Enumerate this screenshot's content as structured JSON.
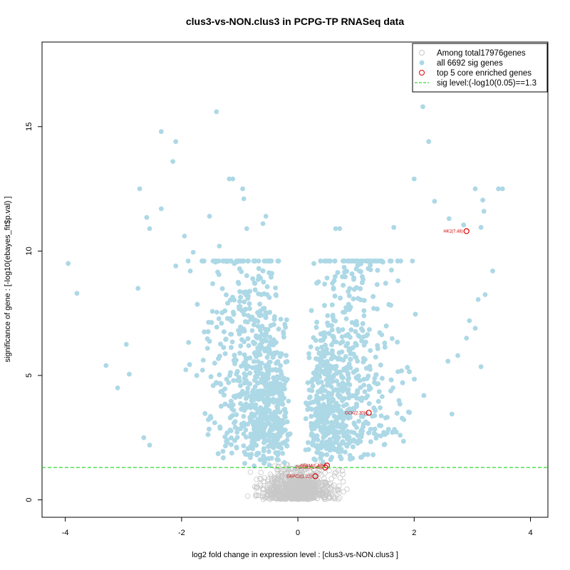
{
  "chart_data": {
    "type": "scatter",
    "title": "clus3-vs-NON.clus3 in PCPG-TP RNASeq data",
    "xlabel": "log2 fold change in expression level : [clus3-vs-NON.clus3 ]",
    "ylabel": "significance of gene : [-log10(ebayes_fit$p.val) ]",
    "xlim": [
      -4.4,
      4.3
    ],
    "ylim": [
      -0.7,
      18.4
    ],
    "xticks": [
      -4,
      -2,
      0,
      2,
      4
    ],
    "yticks": [
      0,
      5,
      10,
      15
    ],
    "sig_level": 1.3,
    "legend": {
      "placement": "top-right",
      "entries": [
        {
          "label": "Among total17976genes",
          "marker": "circle-open",
          "color": "#c8c8c8"
        },
        {
          "label": "all 6692 sig genes",
          "marker": "circle-filled",
          "color": "#add8e6"
        },
        {
          "label": "top 5 core enriched genes",
          "marker": "circle-open",
          "color": "#e00000"
        },
        {
          "label": "sig level:(-log10(0.05)==1.3",
          "marker": "dashed-line",
          "color": "#00cc00"
        }
      ]
    },
    "colors": {
      "nonsig": "#c8c8c8",
      "sig": "#add8e6",
      "core": "#e00000",
      "sigline": "#00cc00"
    },
    "highlight_points": [
      [
        -3.95,
        9.5
      ],
      [
        -3.8,
        8.3
      ],
      [
        -3.3,
        5.4
      ],
      [
        -3.1,
        4.5
      ],
      [
        -2.95,
        6.25
      ],
      [
        -2.9,
        5.05
      ],
      [
        -2.75,
        8.5
      ],
      [
        -2.72,
        12.5
      ],
      [
        -2.6,
        11.35
      ],
      [
        -2.55,
        10.9
      ],
      [
        -2.35,
        14.8
      ],
      [
        -2.35,
        11.7
      ],
      [
        -2.1,
        9.4
      ],
      [
        -2.1,
        14.4
      ],
      [
        -2.15,
        13.6
      ],
      [
        -1.95,
        10.6
      ],
      [
        -1.85,
        9.2
      ],
      [
        -1.8,
        9.95
      ],
      [
        -1.4,
        15.6
      ],
      [
        -1.52,
        11.4
      ],
      [
        -1.18,
        12.9
      ],
      [
        -1.12,
        12.9
      ],
      [
        -0.95,
        12.5
      ],
      [
        -0.93,
        12.1
      ],
      [
        -0.88,
        10.9
      ],
      [
        -0.6,
        11.1
      ],
      [
        -0.55,
        11.4
      ],
      [
        -1.35,
        10.2
      ],
      [
        -2.65,
        2.5
      ],
      [
        -2.55,
        2.2
      ],
      [
        2.15,
        15.8
      ],
      [
        2.25,
        14.4
      ],
      [
        2.0,
        12.9
      ],
      [
        2.35,
        12.0
      ],
      [
        2.6,
        11.3
      ],
      [
        3.05,
        12.5
      ],
      [
        3.18,
        12.05
      ],
      [
        3.2,
        11.6
      ],
      [
        3.45,
        12.5
      ],
      [
        3.52,
        12.5
      ],
      [
        3.15,
        10.95
      ],
      [
        3.35,
        9.2
      ],
      [
        3.22,
        8.25
      ],
      [
        3.1,
        8.05
      ],
      [
        2.85,
        11.05
      ],
      [
        0.72,
        10.9
      ],
      [
        0.65,
        10.9
      ],
      [
        2.9,
        6.5
      ],
      [
        3.15,
        5.35
      ],
      [
        2.65,
        3.45
      ],
      [
        2.95,
        7.2
      ],
      [
        3.05,
        6.9
      ],
      [
        2.75,
        5.8
      ],
      [
        1.65,
        10.95
      ]
    ],
    "core_genes": [
      {
        "label": "HK2(7.48)",
        "x": 2.9,
        "y": 10.8
      },
      {
        "label": "GCK(2.30)",
        "x": 1.22,
        "y": 3.5
      },
      {
        "label": "PFKM(1.49)",
        "x": 0.5,
        "y": 1.38
      },
      {
        "label": "PGAM2(1.45)",
        "x": 0.47,
        "y": 1.3
      },
      {
        "label": "G6PC2(1.22)",
        "x": 0.3,
        "y": 0.95
      }
    ]
  }
}
